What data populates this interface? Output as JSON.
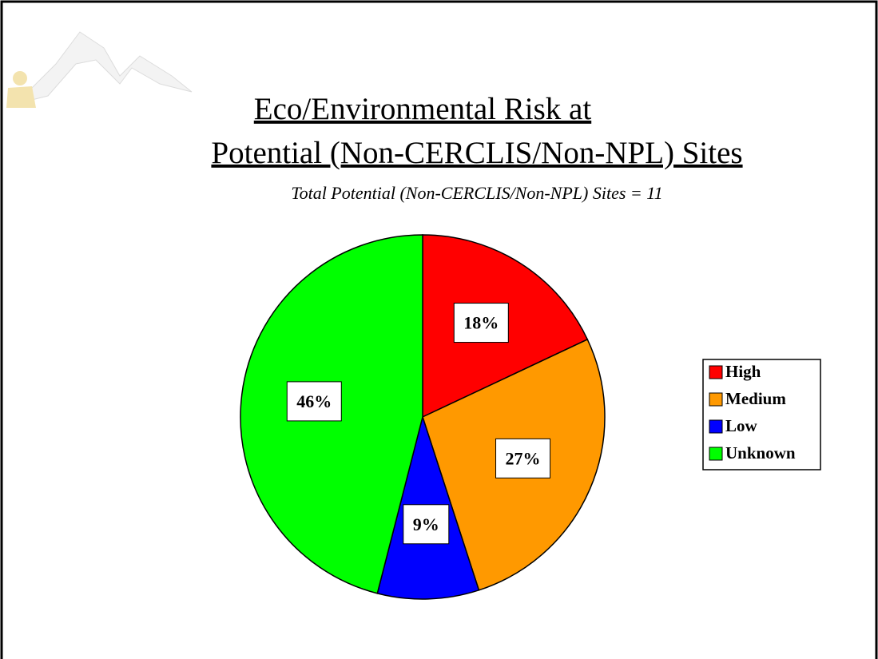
{
  "chart_data": {
    "type": "pie",
    "title": [
      "Eco/Environmental Risk at",
      "Potential (Non-CERCLIS/Non-NPL) Sites"
    ],
    "subtitle": "Total Potential (Non-CERCLIS/Non-NPL) Sites = 11",
    "categories": [
      "High",
      "Medium",
      "Low",
      "Unknown"
    ],
    "values": [
      18,
      27,
      9,
      46
    ],
    "value_labels": [
      "18%",
      "27%",
      "9%",
      "46%"
    ],
    "colors": [
      "#ff0000",
      "#ff9900",
      "#0000ff",
      "#00ff00"
    ],
    "legend": "right"
  }
}
